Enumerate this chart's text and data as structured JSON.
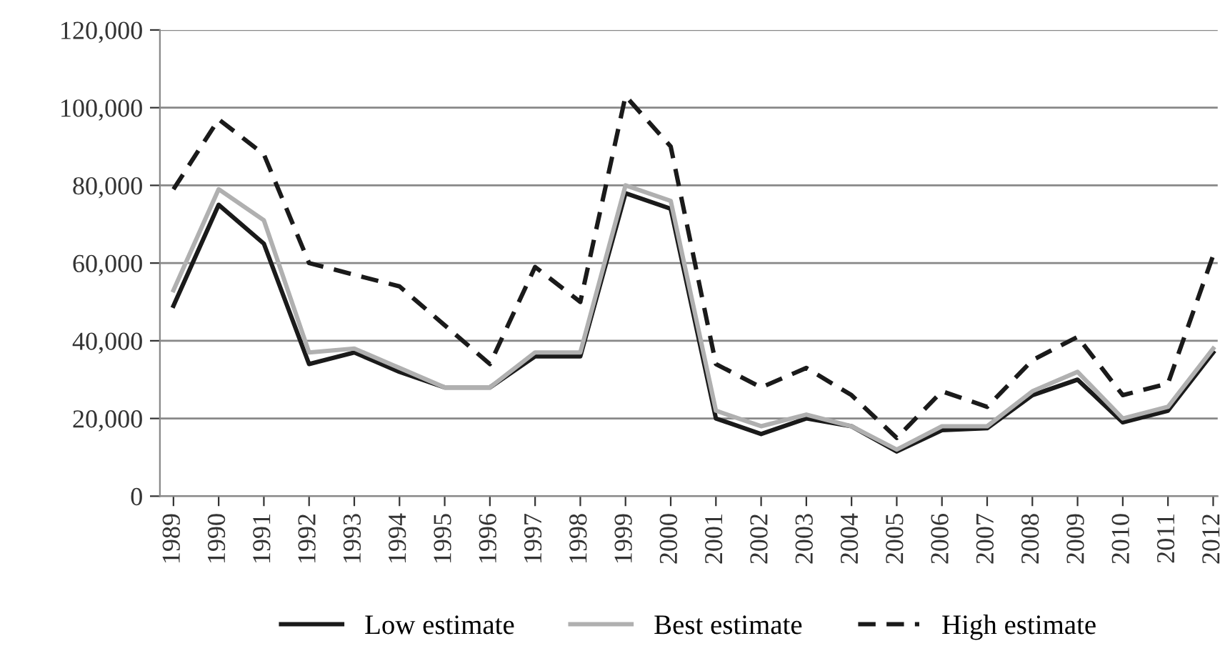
{
  "chart_data": {
    "type": "line",
    "categories": [
      "1989",
      "1990",
      "1991",
      "1992",
      "1993",
      "1994",
      "1995",
      "1996",
      "1997",
      "1998",
      "1999",
      "2000",
      "2001",
      "2002",
      "2003",
      "2004",
      "2005",
      "2006",
      "2007",
      "2008",
      "2009",
      "2010",
      "2011",
      "2012"
    ],
    "series": [
      {
        "name": "Low estimate",
        "color": "#1a1a1a",
        "line_style": "solid",
        "values": [
          49000,
          75000,
          65000,
          34000,
          37000,
          32000,
          28000,
          28000,
          36000,
          36000,
          78000,
          74000,
          20000,
          16000,
          20000,
          18000,
          11500,
          17000,
          17500,
          26000,
          30000,
          19000,
          22000,
          37000
        ]
      },
      {
        "name": "Best estimate",
        "color": "#b0b0b0",
        "line_style": "solid",
        "values": [
          53000,
          79000,
          71000,
          37000,
          38000,
          33000,
          28000,
          28000,
          37000,
          37000,
          80000,
          76000,
          22000,
          18000,
          21000,
          18000,
          12000,
          18000,
          18000,
          27000,
          32000,
          20000,
          23000,
          38000
        ]
      },
      {
        "name": "High estimate",
        "color": "#1a1a1a",
        "line_style": "dashed",
        "values": [
          79000,
          97000,
          88000,
          60000,
          57000,
          54000,
          44000,
          34000,
          59000,
          50000,
          103000,
          90000,
          34000,
          28000,
          33000,
          26000,
          15000,
          27000,
          23000,
          35000,
          41000,
          26000,
          29000,
          62000
        ]
      }
    ],
    "ylim": [
      0,
      120000
    ],
    "yticks": [
      {
        "value": 0,
        "label": "0"
      },
      {
        "value": 20000,
        "label": "20,000"
      },
      {
        "value": 40000,
        "label": "40,000"
      },
      {
        "value": 60000,
        "label": "60,000"
      },
      {
        "value": 80000,
        "label": "80,000"
      },
      {
        "value": 100000,
        "label": "100,000"
      },
      {
        "value": 120000,
        "label": "120,000"
      }
    ],
    "grid": "y",
    "legend": "bottom",
    "marker": "none"
  }
}
